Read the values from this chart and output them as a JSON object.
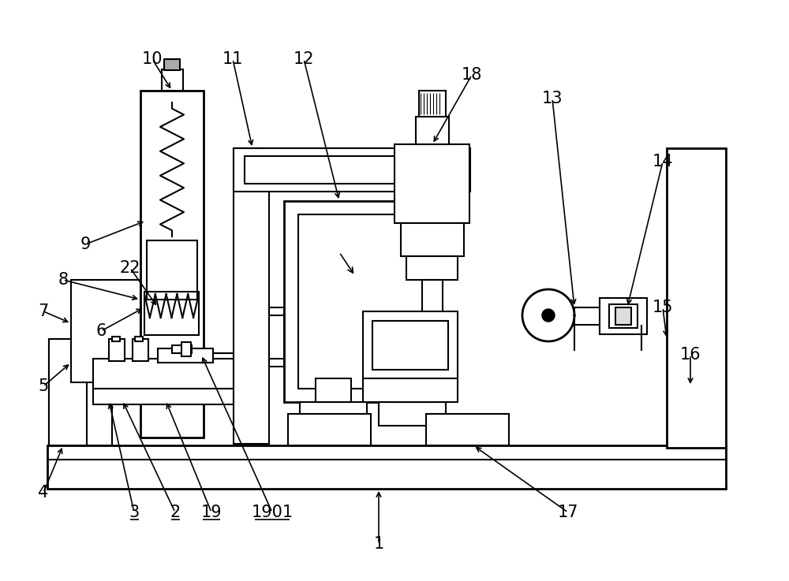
{
  "bg_color": "#ffffff",
  "lc": "#000000",
  "lw": 1.5,
  "lw2": 2.0,
  "fig_w": 10.0,
  "fig_h": 7.37,
  "dpi": 100
}
